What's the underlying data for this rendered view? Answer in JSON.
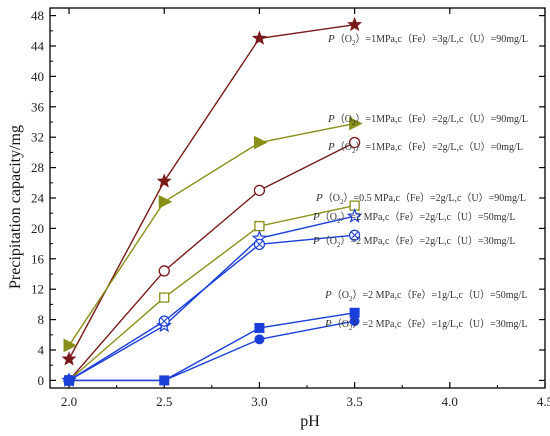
{
  "chart_data": {
    "type": "line",
    "xlabel": "pH",
    "ylabel": "Precipitation capacity/mg",
    "xlim": [
      1.9,
      4.5
    ],
    "ylim": [
      -1,
      49
    ],
    "x_ticks": [
      "2.0",
      "2.5",
      "3.0",
      "3.5",
      "4.0",
      "4.5"
    ],
    "y_ticks": [
      "0",
      "4",
      "8",
      "12",
      "16",
      "20",
      "24",
      "28",
      "32",
      "36",
      "40",
      "44",
      "48"
    ],
    "grid": false,
    "x": [
      2.0,
      2.5,
      3.0,
      3.5
    ],
    "series": [
      {
        "values": [
          2.8,
          26.2,
          45.0,
          46.8
        ],
        "marker": "star",
        "color": "#7b1a1a",
        "fill": "#7b1a1a",
        "label_parts": [
          "P",
          "（O",
          "2",
          "）=1MPa,c（Fe）=3g/L,c（U）=90mg/L"
        ]
      },
      {
        "values": [
          4.6,
          23.5,
          31.3,
          33.8
        ],
        "marker": "triangle-right",
        "color": "#8a8f1a",
        "fill": "#8a8f1a",
        "label_parts": [
          "P",
          "（O",
          "2",
          "）=1MPa,c（Fe）=2g/L,c（U）=90mg/L"
        ]
      },
      {
        "values": [
          0.0,
          14.4,
          25.0,
          31.3
        ],
        "marker": "circle-open",
        "color": "#7b1a1a",
        "fill": "#ffffff",
        "label_parts": [
          "P",
          "（O",
          "2",
          "）=1MPa,c（Fe）=2g/L,c（U）=0mg/L"
        ]
      },
      {
        "values": [
          0.0,
          10.9,
          20.3,
          23.0
        ],
        "marker": "square-open",
        "color": "#8a8f1a",
        "fill": "#ffffff",
        "label_parts": [
          "P",
          "（O",
          "2",
          "）=0.5 MPa,c（Fe）=2g/L,c（U）=90mg/L"
        ]
      },
      {
        "values": [
          0.0,
          7.2,
          18.7,
          21.6
        ],
        "marker": "star-open",
        "color": "#1a3fd8",
        "fill": "#ffffff",
        "label_parts": [
          "P",
          "（O",
          "2",
          "）=2 MPa,c（Fe）=2g/L,c（U）=50mg/L"
        ]
      },
      {
        "values": [
          0.0,
          7.8,
          17.9,
          19.1
        ],
        "marker": "circle-cross",
        "color": "#1a3fd8",
        "fill": "#ffffff",
        "label_parts": [
          "P",
          "（O",
          "2",
          "）=2 MPa,c（Fe）=2g/L,c（U）=30mg/L"
        ]
      },
      {
        "values": [
          0.0,
          0.0,
          6.9,
          8.9
        ],
        "marker": "square",
        "color": "#1a3fd8",
        "fill": "#1a3fd8",
        "label_parts": [
          "P",
          "（O",
          "2",
          "）=2 MPa,c（Fe）=1g/L,c（U）=50mg/L"
        ]
      },
      {
        "values": [
          0.0,
          0.0,
          5.4,
          7.8
        ],
        "marker": "circle",
        "color": "#1a3fd8",
        "fill": "#1a3fd8",
        "label_parts": [
          "P",
          "（O",
          "2",
          "）=2 MPa,c（Fe）=1g/L,c（U）=30mg/L"
        ]
      }
    ]
  }
}
